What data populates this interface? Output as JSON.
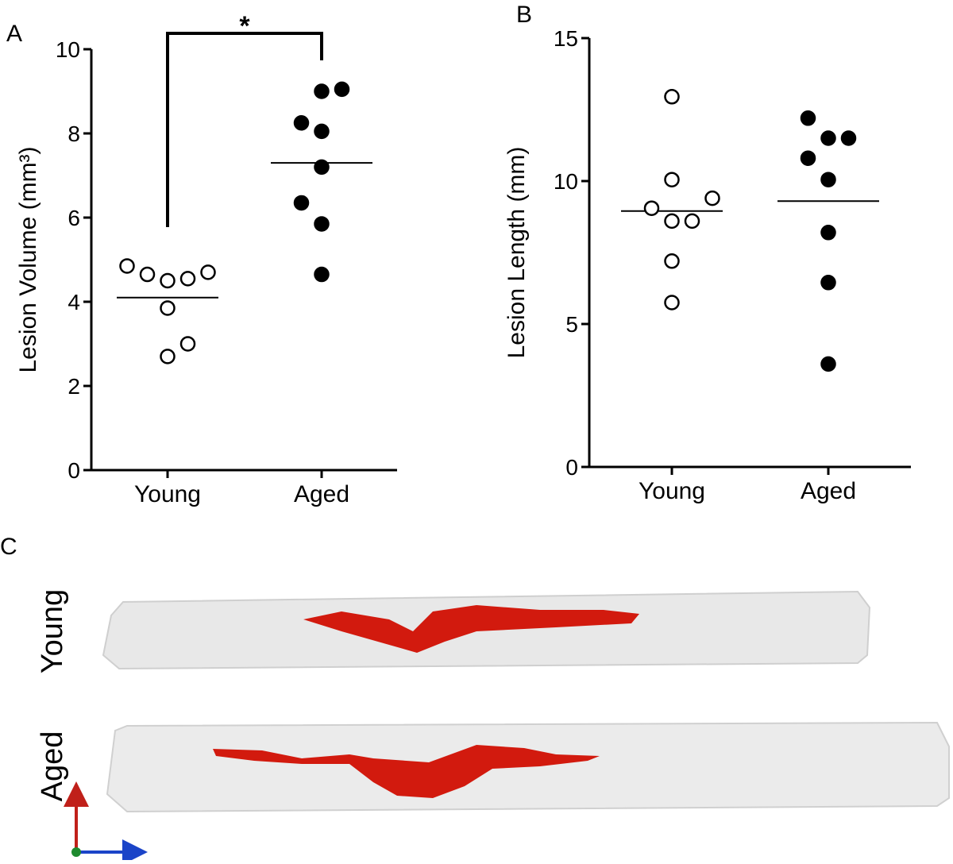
{
  "chart_data": [
    {
      "type": "dot",
      "panel_label": "A",
      "ylabel": "Lesion Volume (mm³)",
      "categories": [
        "Young",
        "Aged"
      ],
      "groups": [
        {
          "values": [
            4.85,
            4.65,
            4.5,
            4.55,
            4.7,
            3.85,
            2.7,
            3.0
          ],
          "mean": 4.1,
          "filled": false
        },
        {
          "values": [
            9.0,
            9.05,
            8.25,
            8.05,
            7.2,
            6.35,
            5.85,
            4.65
          ],
          "mean": 7.3,
          "filled": true
        }
      ],
      "color": "#000000",
      "ylim": [
        0,
        10
      ],
      "yticks": [
        0,
        2,
        4,
        6,
        8,
        10
      ],
      "annotation": "*"
    },
    {
      "type": "dot",
      "panel_label": "B",
      "ylabel": "Lesion Length (mm)",
      "categories": [
        "Young",
        "Aged"
      ],
      "groups": [
        {
          "values": [
            12.95,
            10.05,
            9.4,
            9.05,
            8.6,
            8.6,
            7.2,
            5.75
          ],
          "mean": 8.95,
          "filled": false
        },
        {
          "values": [
            12.2,
            10.8,
            11.5,
            11.5,
            10.05,
            8.2,
            6.45,
            3.6
          ],
          "mean": 9.3,
          "filled": true
        }
      ],
      "color": "#000000",
      "ylim": [
        0,
        15
      ],
      "yticks": [
        0,
        5,
        10,
        15
      ]
    }
  ],
  "panel_c": {
    "label": "C",
    "rows": [
      "Young",
      "Aged"
    ]
  }
}
